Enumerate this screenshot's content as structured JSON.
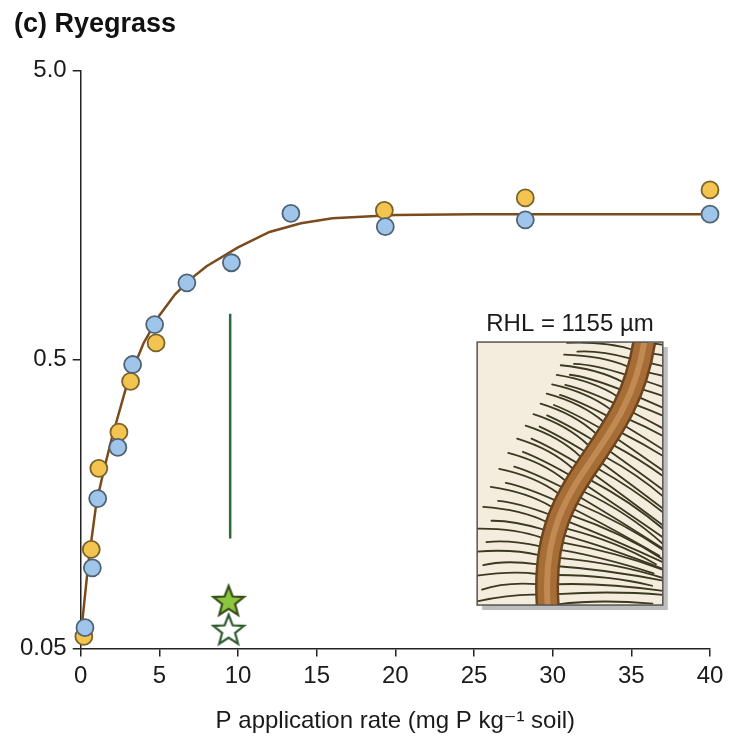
{
  "chart_data": {
    "type": "scatter",
    "title": "(c) Ryegrass",
    "x_label": "P application rate (mg P kg⁻¹ soil)",
    "xlim": [
      0,
      40
    ],
    "xticks": [
      0,
      5,
      10,
      15,
      20,
      25,
      30,
      35,
      40
    ],
    "ylim": [
      0.05,
      5
    ],
    "yticks": [
      0.05,
      0.5,
      {
        "value": 5,
        "label": "5.0"
      }
    ],
    "log": "y",
    "grid": false,
    "annotations": [
      {
        "text": "RHL = 1155 µm"
      }
    ],
    "series": [
      {
        "type": "line",
        "color": "#7b4b1c",
        "marker": "none",
        "x": [
          0,
          0.5,
          1,
          1.5,
          2,
          3,
          4,
          5,
          6,
          7,
          8,
          10,
          12,
          14,
          16,
          20,
          25,
          30,
          35,
          40
        ],
        "values": [
          0.055,
          0.1,
          0.16,
          0.21,
          0.27,
          0.42,
          0.57,
          0.71,
          0.84,
          0.95,
          1.05,
          1.22,
          1.38,
          1.48,
          1.54,
          1.58,
          1.59,
          1.59,
          1.59,
          1.59
        ]
      },
      {
        "type": "scatter",
        "color": "#9fc5ea",
        "marker": "circle",
        "x": [
          0.27,
          0.74,
          1.08,
          2.36,
          3.3,
          4.7,
          6.75,
          9.58,
          13.36,
          19.36,
          28.26,
          40
        ],
        "values": [
          0.059,
          0.095,
          0.165,
          0.248,
          0.48,
          0.66,
          0.92,
          1.08,
          1.6,
          1.44,
          1.52,
          1.59
        ]
      },
      {
        "type": "scatter",
        "color": "#f3c550",
        "marker": "circle",
        "x": [
          0.2,
          0.67,
          1.15,
          2.43,
          3.17,
          4.79,
          19.3,
          28.26,
          40
        ],
        "values": [
          0.055,
          0.11,
          0.21,
          0.28,
          0.42,
          0.57,
          1.64,
          1.81,
          1.93
        ]
      },
      {
        "type": "line",
        "color": "#2e6b3a",
        "marker": "none",
        "x": [
          9.5,
          9.5
        ],
        "values": [
          0.12,
          0.72
        ]
      },
      {
        "type": "scatter",
        "color": "#8cc63f",
        "marker": "star",
        "x": [
          9.4
        ],
        "values": [
          0.073
        ]
      },
      {
        "type": "scatter",
        "color": "#2e5a2e",
        "marker": "open_star",
        "x": [
          9.4
        ],
        "values": [
          0.058
        ]
      }
    ]
  }
}
